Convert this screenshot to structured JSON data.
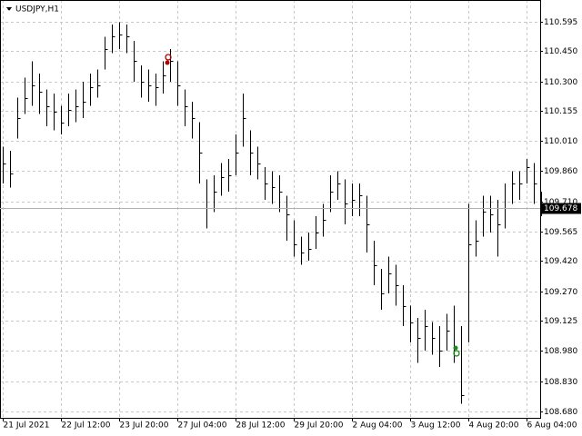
{
  "chart_data": {
    "type": "ohlc",
    "title": "USDJPY,H1",
    "categories": [
      "21 Jul 2021",
      null,
      null,
      null,
      null,
      null,
      null,
      null,
      "22 Jul 12:00",
      null,
      null,
      null,
      null,
      null,
      null,
      null,
      "23 Jul 20:00",
      null,
      null,
      null,
      null,
      null,
      null,
      null,
      "27 Jul 04:00",
      null,
      null,
      null,
      null,
      null,
      null,
      null,
      "28 Jul 12:00",
      null,
      null,
      null,
      null,
      null,
      null,
      null,
      "29 Jul 20:00",
      null,
      null,
      null,
      null,
      null,
      null,
      null,
      "2 Aug 04:00",
      null,
      null,
      null,
      null,
      null,
      null,
      null,
      "3 Aug 12:00",
      null,
      null,
      null,
      null,
      null,
      null,
      null,
      "4 Aug 20:00",
      null,
      null,
      null,
      null,
      null,
      null,
      null,
      "6 Aug 04:00",
      null,
      null
    ],
    "high": [
      109.98,
      109.96,
      110.22,
      110.32,
      110.4,
      110.34,
      110.26,
      110.24,
      110.18,
      110.24,
      110.26,
      110.3,
      110.34,
      110.36,
      110.52,
      110.58,
      110.59,
      110.58,
      110.5,
      110.38,
      110.36,
      110.34,
      110.4,
      110.46,
      110.4,
      110.26,
      110.2,
      110.1,
      109.82,
      109.84,
      109.9,
      109.92,
      110.04,
      110.24,
      110.06,
      109.98,
      109.88,
      109.86,
      109.84,
      109.74,
      109.62,
      109.54,
      109.56,
      109.64,
      109.7,
      109.84,
      109.86,
      109.82,
      109.8,
      109.8,
      109.74,
      109.52,
      109.38,
      109.44,
      109.4,
      109.3,
      109.2,
      109.14,
      109.18,
      109.12,
      109.1,
      109.16,
      109.2,
      109.1,
      109.7,
      109.62,
      109.74,
      109.74,
      109.72,
      109.8,
      109.86,
      109.86,
      109.92,
      109.9,
      109.76
    ],
    "low": [
      109.8,
      109.78,
      110.02,
      110.14,
      110.18,
      110.14,
      110.08,
      110.06,
      110.04,
      110.08,
      110.1,
      110.12,
      110.18,
      110.22,
      110.36,
      110.44,
      110.46,
      110.44,
      110.3,
      110.22,
      110.2,
      110.18,
      110.24,
      110.3,
      110.18,
      110.08,
      110.02,
      109.8,
      109.58,
      109.66,
      109.74,
      109.76,
      109.84,
      109.98,
      109.84,
      109.82,
      109.72,
      109.7,
      109.66,
      109.52,
      109.44,
      109.4,
      109.42,
      109.48,
      109.54,
      109.66,
      109.72,
      109.6,
      109.64,
      109.64,
      109.46,
      109.3,
      109.18,
      109.26,
      109.2,
      109.1,
      109.02,
      108.92,
      108.98,
      108.96,
      108.9,
      108.98,
      108.92,
      108.72,
      109.02,
      109.44,
      109.54,
      109.56,
      109.44,
      109.58,
      109.7,
      109.72,
      109.8,
      109.7,
      109.64
    ],
    "close": [
      109.9,
      109.85,
      110.12,
      110.22,
      110.28,
      110.25,
      110.18,
      110.15,
      110.1,
      110.16,
      110.18,
      110.2,
      110.27,
      110.28,
      110.46,
      110.52,
      110.53,
      110.52,
      110.4,
      110.3,
      110.28,
      110.27,
      110.33,
      110.4,
      110.28,
      110.18,
      110.12,
      109.95,
      109.68,
      109.76,
      109.83,
      109.84,
      109.95,
      110.12,
      109.95,
      109.9,
      109.8,
      109.78,
      109.76,
      109.65,
      109.5,
      109.46,
      109.48,
      109.56,
      109.62,
      109.76,
      109.8,
      109.7,
      109.72,
      109.74,
      109.6,
      109.4,
      109.26,
      109.36,
      109.3,
      109.2,
      109.12,
      109.04,
      109.1,
      109.04,
      108.98,
      109.08,
      109.0,
      108.76,
      109.5,
      109.52,
      109.66,
      109.65,
      109.6,
      109.68,
      109.8,
      109.8,
      109.88,
      109.8,
      109.678
    ],
    "ylim": [
      108.65,
      110.7
    ],
    "yticks": [
      110.595,
      {
        "value": 110.45,
        "label": "110.450"
      },
      {
        "value": 110.3,
        "label": "110.300"
      },
      110.155,
      {
        "value": 110.01,
        "label": "110.010"
      },
      {
        "value": 109.86,
        "label": "109.860"
      },
      {
        "value": 109.71,
        "label": "109.710"
      },
      109.565,
      {
        "value": 109.42,
        "label": "109.420"
      },
      {
        "value": 109.27,
        "label": "109.270"
      },
      109.125,
      {
        "value": 108.98,
        "label": "108.980"
      },
      {
        "value": 108.83,
        "label": "108.830"
      },
      {
        "value": 108.68,
        "label": "108.680"
      }
    ],
    "grid": true,
    "color": "#000000"
  }
}
